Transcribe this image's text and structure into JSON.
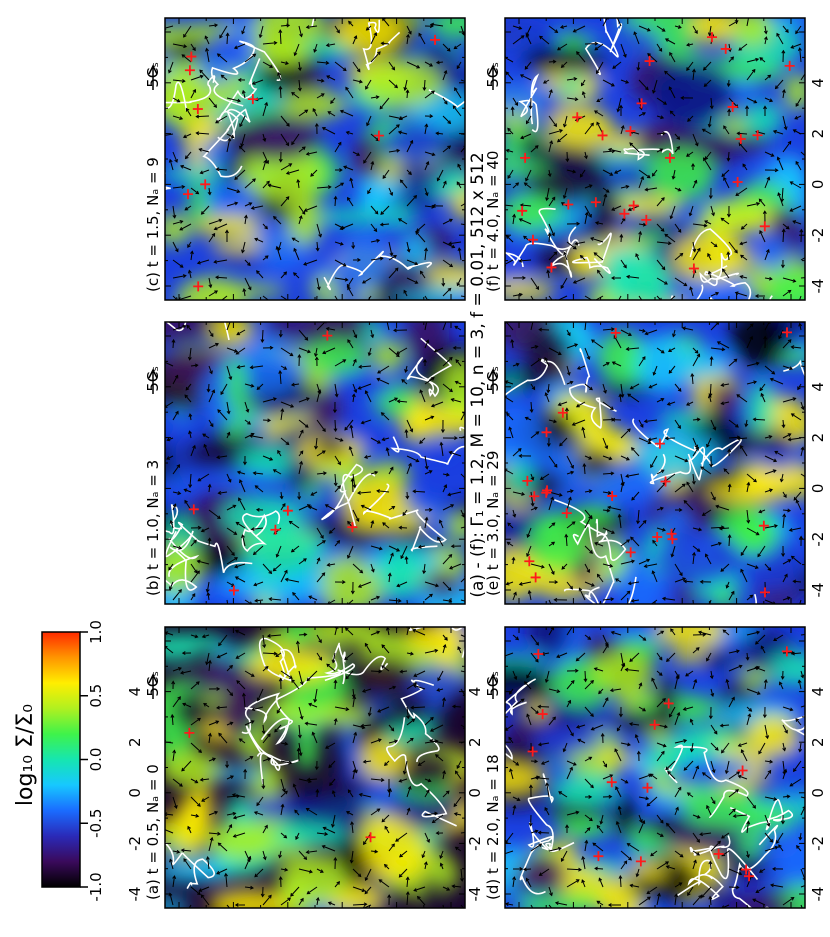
{
  "figure": {
    "title": "(a) - (f): Γ₁ = 1.2, M = 10, n = 3, f = 0.01, 512 x 512",
    "colorbar": {
      "label": "log₁₀ Σ/Σ₀",
      "ticks": [
        "-1.0",
        "-0.5",
        "0.0",
        "0.5",
        "1.0"
      ],
      "colors": [
        "#000000",
        "#3a0a5c",
        "#2a2ab8",
        "#1a6cff",
        "#17c8ff",
        "#16e6b0",
        "#3ff34a",
        "#b0f020",
        "#ffee00",
        "#ff9500",
        "#ff2a00"
      ]
    },
    "panels": [
      {
        "id": "a",
        "label": "(a) t = 0.5, Nₐ = 0",
        "arrow_label": "5Cₛ"
      },
      {
        "id": "b",
        "label": "(b) t = 1.0, Nₐ = 3",
        "arrow_label": "5Cₛ"
      },
      {
        "id": "c",
        "label": "(c) t = 1.5, Nₐ = 9",
        "arrow_label": "5Cₛ"
      },
      {
        "id": "d",
        "label": "(d) t = 2.0, Nₐ = 18",
        "arrow_label": "5Cₛ"
      },
      {
        "id": "e",
        "label": "(e) t = 3.0, Nₐ = 29",
        "arrow_label": "5Cₛ"
      },
      {
        "id": "f",
        "label": "(f) t = 4.0, Nₐ = 40",
        "arrow_label": "5Cₛ"
      }
    ],
    "axis_ticks": [
      "-4",
      "-2",
      "0",
      "2",
      "4"
    ],
    "sink_color": "#ff1a1a",
    "contour_color": "#ffffff"
  }
}
